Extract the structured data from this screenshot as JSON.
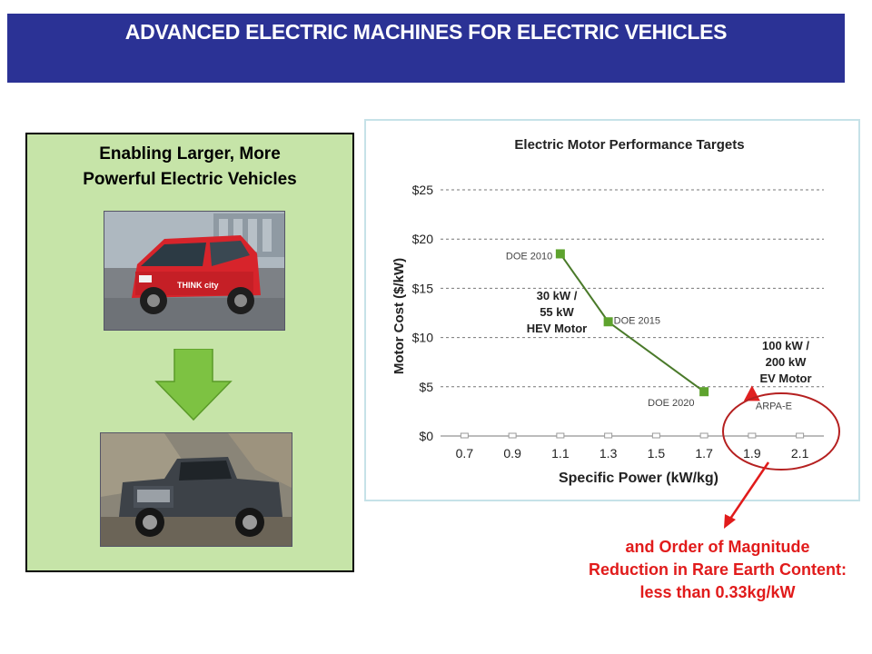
{
  "title": "ADVANCED ELECTRIC MACHINES FOR ELECTRIC VEHICLES",
  "left_panel": {
    "heading_line1": "Enabling Larger, More",
    "heading_line2": "Powerful Electric Vehicles",
    "car_badge": "THINK city"
  },
  "annotation": {
    "line1": "and Order of Magnitude",
    "line2": "Reduction in Rare Earth Content:",
    "line3": "less than 0.33kg/kW"
  },
  "colors": {
    "title_bg": "#2b3295",
    "panel_bg": "#c6e4a8",
    "series": "#4a7a2a",
    "marker": "#5ea32e",
    "arpa": "#e02020",
    "annotation": "#e11b1b"
  },
  "chart_data": {
    "type": "line",
    "title": "Electric Motor Performance Targets",
    "xlabel": "Specific Power (kW/kg)",
    "ylabel": "Motor Cost ($/kW)",
    "x_ticks": [
      "0.7",
      "0.9",
      "1.1",
      "1.3",
      "1.5",
      "1.7",
      "1.9",
      "2.1"
    ],
    "y_ticks": [
      "$0",
      "$5",
      "$10",
      "$15",
      "$20",
      "$25"
    ],
    "xlim": [
      0.6,
      2.2
    ],
    "ylim": [
      0,
      25
    ],
    "grid": true,
    "series": [
      {
        "points": [
          {
            "x": 1.1,
            "y": 18.5,
            "label": "DOE 2010"
          },
          {
            "x": 1.3,
            "y": 11.6,
            "label": "DOE 2015"
          },
          {
            "x": 1.7,
            "y": 4.5,
            "label": "DOE 2020"
          }
        ]
      }
    ],
    "target": {
      "x": 1.9,
      "y": 4.3,
      "label": "ARPA-E"
    },
    "annotations": [
      {
        "lines": [
          "30 kW /",
          "55 kW",
          "HEV Motor"
        ]
      },
      {
        "lines": [
          "100 kW /",
          "200 kW",
          "EV Motor"
        ]
      }
    ]
  }
}
